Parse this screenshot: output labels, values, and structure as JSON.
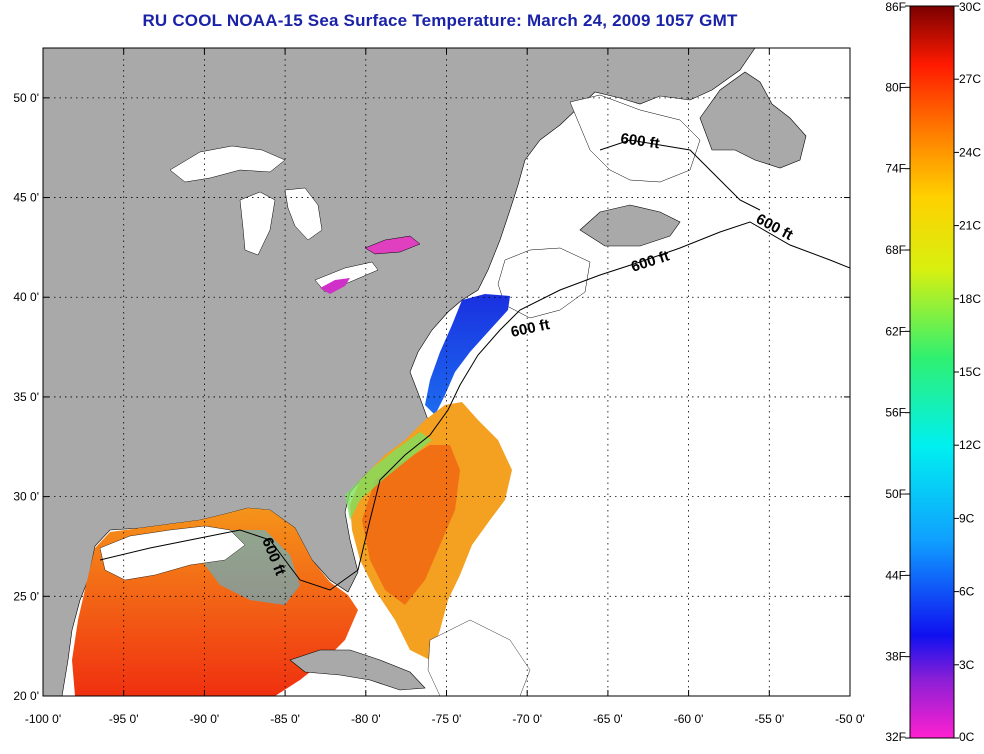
{
  "title": "RU COOL  NOAA-15  Sea Surface Temperature:  March 24, 2009 1057 GMT",
  "map": {
    "lon_labels": [
      "-100 0'",
      "-95 0'",
      "-90 0'",
      "-85 0'",
      "-80 0'",
      "-75 0'",
      "-70 0'",
      "-65 0'",
      "-60 0'",
      "-55 0'",
      "-50 0'"
    ],
    "lat_labels": [
      "50 0'",
      "45 0'",
      "40 0'",
      "35 0'",
      "30 0'",
      "25 0'",
      "20 0'"
    ],
    "lon_range": [
      -100,
      -50
    ],
    "lat_range": [
      20,
      52.5
    ],
    "grid": "dotted",
    "isobath_label": "600 ft",
    "land_color": "#a9a9a9",
    "cloud_color": "#ffffff"
  },
  "colorbar": {
    "f_labels": [
      "86F",
      "80F",
      "74F",
      "68F",
      "62F",
      "56F",
      "50F",
      "44F",
      "38F",
      "32F"
    ],
    "c_labels": [
      "30C",
      "27C",
      "24C",
      "21C",
      "18C",
      "15C",
      "12C",
      "9C",
      "6C",
      "3C",
      "0C"
    ],
    "range_c": [
      0,
      30
    ]
  }
}
